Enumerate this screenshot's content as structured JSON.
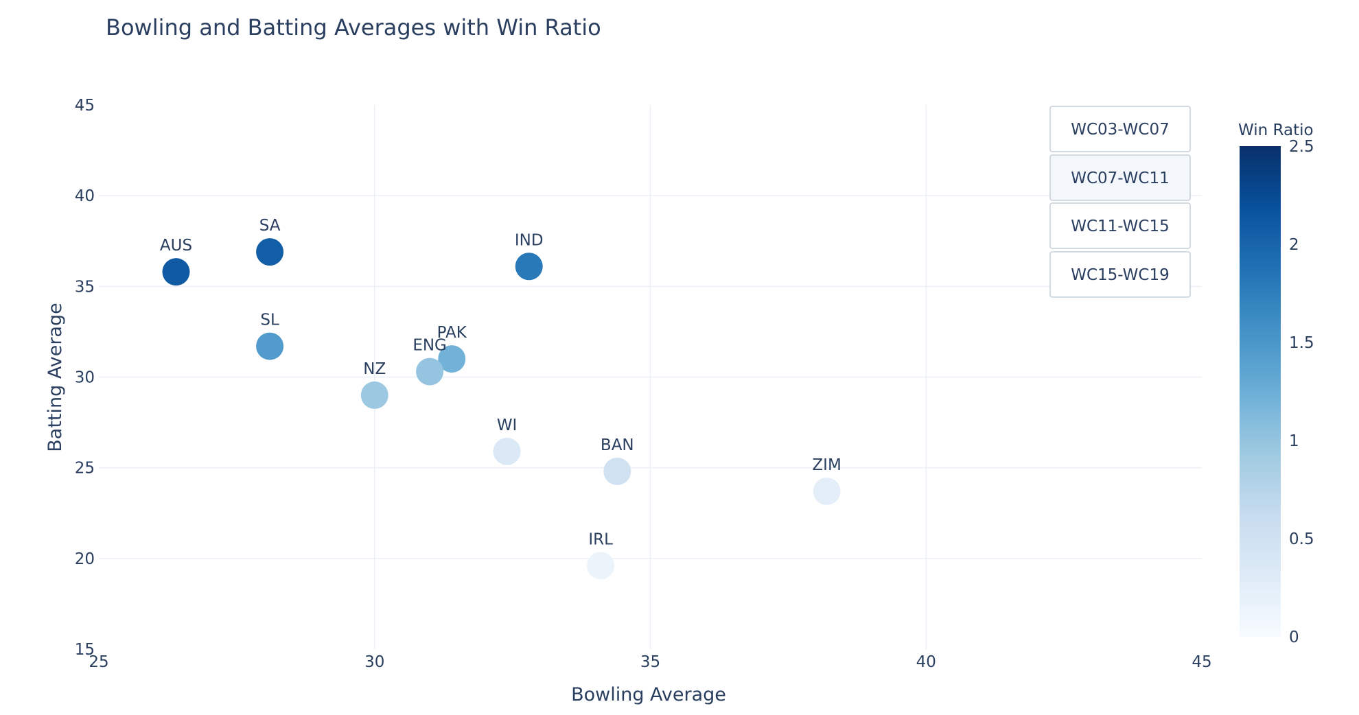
{
  "chart_data": {
    "type": "scatter",
    "title": "Bowling and Batting Averages with Win Ratio",
    "xlabel": "Bowling Average",
    "ylabel": "Batting Average",
    "xlim": [
      25,
      45
    ],
    "ylim": [
      15,
      45
    ],
    "xticks": [
      25,
      30,
      35,
      40,
      45
    ],
    "yticks": [
      15,
      20,
      25,
      30,
      35,
      40,
      45
    ],
    "grid": true,
    "colorbar": {
      "title": "Win Ratio",
      "range": [
        0,
        2.5
      ],
      "ticks": [
        0,
        0.5,
        1,
        1.5,
        2,
        2.5
      ],
      "colorscale": "Blues"
    },
    "points": [
      {
        "label": "AUS",
        "x": 26.4,
        "y": 35.8,
        "win_ratio": 2.1
      },
      {
        "label": "SA",
        "x": 28.1,
        "y": 36.9,
        "win_ratio": 2.05
      },
      {
        "label": "IND",
        "x": 32.8,
        "y": 36.1,
        "win_ratio": 1.8
      },
      {
        "label": "SL",
        "x": 28.1,
        "y": 31.7,
        "win_ratio": 1.45
      },
      {
        "label": "PAK",
        "x": 31.4,
        "y": 31.0,
        "win_ratio": 1.2
      },
      {
        "label": "ENG",
        "x": 31.0,
        "y": 30.3,
        "win_ratio": 1.0
      },
      {
        "label": "NZ",
        "x": 30.0,
        "y": 29.0,
        "win_ratio": 0.95
      },
      {
        "label": "WI",
        "x": 32.4,
        "y": 25.9,
        "win_ratio": 0.35
      },
      {
        "label": "BAN",
        "x": 34.4,
        "y": 24.8,
        "win_ratio": 0.5
      },
      {
        "label": "ZIM",
        "x": 38.2,
        "y": 23.7,
        "win_ratio": 0.25
      },
      {
        "label": "IRL",
        "x": 34.1,
        "y": 19.6,
        "win_ratio": 0.15
      }
    ]
  },
  "period_buttons": [
    {
      "label": "WC03-WC07",
      "active": false
    },
    {
      "label": "WC07-WC11",
      "active": true
    },
    {
      "label": "WC11-WC15",
      "active": false
    },
    {
      "label": "WC15-WC19",
      "active": false
    }
  ]
}
